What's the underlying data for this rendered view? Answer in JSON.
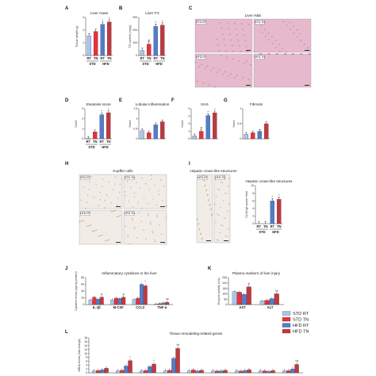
{
  "colors": {
    "std_rt": "#a9c6ec",
    "std_tn": "#e8323a",
    "hfd_rt": "#3f6fc6",
    "hfd_tn": "#b8242c",
    "he_pink": "#e6b9cc",
    "ihc_bg": "#f1ece6"
  },
  "panels": {
    "A": {
      "letter": "A",
      "title": "Liver mass",
      "ylabel": "Tissue weight (g)",
      "xticks": [
        "RT",
        "TN",
        "RT",
        "TN"
      ],
      "groups": [
        "STD",
        "HFD"
      ]
    },
    "B": {
      "letter": "B",
      "title": "Liver TG",
      "ylabel": "TG content (mg/g)",
      "xticks": [
        "RT",
        "TN",
        "RT",
        "TN"
      ],
      "groups": [
        "STD",
        "HFD"
      ]
    },
    "C": {
      "letter": "C",
      "title": "Liver H&E",
      "images": [
        "STD-RT",
        "STD-TN",
        "HFD-RT",
        "HFD-TN"
      ]
    },
    "D": {
      "letter": "D",
      "title": "Steatosis score",
      "ylabel": "Score",
      "xticks": [
        "RT",
        "TN",
        "RT",
        "TN"
      ],
      "groups": [
        "STD",
        "HFD"
      ]
    },
    "E": {
      "letter": "E",
      "title": "Lobular inflammation",
      "ylabel": "Score"
    },
    "F": {
      "letter": "F",
      "title": "NAS",
      "ylabel": "Score"
    },
    "G": {
      "letter": "G",
      "title": "Fibrosis",
      "ylabel": "Score"
    },
    "H": {
      "letter": "H",
      "title": "Kupffer cells",
      "images": [
        "STD-RT",
        "STD-TN",
        "HFD-RT",
        "HFD-TN"
      ]
    },
    "I": {
      "letter": "I",
      "title": "Hepatic crown-like structures",
      "images": [
        "HFD-RT",
        "HFD-TN"
      ],
      "ylabel": "CLS/high power field",
      "xticks": [
        "RT",
        "TN",
        "RT",
        "TN"
      ],
      "groups": [
        "STD",
        "HFD"
      ]
    },
    "J": {
      "letter": "J",
      "title": "Inflammatory cytokines in the liver",
      "ylabel": "Cytokine levels (pg/mg protein)",
      "categories": [
        "IL-1β",
        "M-CSF",
        "CCL2",
        "TNF-α"
      ]
    },
    "K": {
      "letter": "K",
      "title": "Plasma markers of liver injury",
      "ylabel": "Enzyme activity (U/L)",
      "categories": [
        "AST",
        "ALT"
      ]
    },
    "L": {
      "letter": "L",
      "title": "Tissue remodeling-related genes",
      "ylabel": "mRNA levels (fold change)"
    }
  },
  "legend": [
    "STD RT",
    "STD TN",
    "HFD RT",
    "HFD TN"
  ],
  "chart_data": [
    {
      "panel": "A",
      "type": "bar",
      "categories": [
        "STD RT",
        "STD TN",
        "HFD RT",
        "HFD TN"
      ],
      "values": [
        1.55,
        1.9,
        2.45,
        2.65
      ],
      "ylim": [
        0,
        3
      ],
      "yticks": [
        0,
        1,
        2,
        3
      ]
    },
    {
      "panel": "B",
      "type": "bar",
      "categories": [
        "STD RT",
        "STD TN",
        "HFD RT",
        "HFD TN"
      ],
      "values": [
        40,
        90,
        230,
        240
      ],
      "ylim": [
        0,
        300
      ],
      "yticks": [
        0,
        100,
        200,
        300
      ]
    },
    {
      "panel": "D",
      "type": "bar",
      "categories": [
        "STD RT",
        "STD TN",
        "HFD RT",
        "HFD TN"
      ],
      "values": [
        0.05,
        0.7,
        2.4,
        2.6
      ],
      "ylim": [
        0,
        3
      ],
      "yticks": [
        0,
        1,
        2,
        3
      ]
    },
    {
      "panel": "E",
      "type": "bar",
      "categories": [
        "STD RT",
        "STD TN",
        "HFD RT",
        "HFD TN"
      ],
      "values": [
        0.4,
        0.3,
        0.7,
        0.85
      ],
      "ylim": [
        0,
        1.5
      ],
      "yticks": [
        0.0,
        0.5,
        1.0,
        1.5
      ]
    },
    {
      "panel": "F",
      "type": "bar",
      "categories": [
        "STD RT",
        "STD TN",
        "HFD RT",
        "HFD TN"
      ],
      "values": [
        0.4,
        1.0,
        3.1,
        3.45
      ],
      "ylim": [
        0,
        4
      ],
      "yticks": [
        0,
        1,
        2,
        3,
        4
      ]
    },
    {
      "panel": "G",
      "type": "bar",
      "categories": [
        "STD RT",
        "STD TN",
        "HFD RT",
        "HFD TN"
      ],
      "values": [
        0.15,
        0.2,
        0.25,
        0.5
      ],
      "ylim": [
        0,
        1.0
      ],
      "yticks": [
        0.0,
        0.5,
        1.0
      ]
    },
    {
      "panel": "I",
      "type": "bar",
      "categories": [
        "STD RT",
        "STD TN",
        "HFD RT",
        "HFD TN"
      ],
      "values": [
        0,
        0,
        6.0,
        6.4
      ],
      "ylim": [
        0,
        10
      ],
      "yticks": [
        0,
        2,
        4,
        6,
        8,
        10
      ]
    },
    {
      "panel": "J",
      "type": "bar",
      "categories": [
        "IL-1β",
        "M-CSF",
        "CCL2",
        "TNF-α"
      ],
      "ylim": [
        0,
        80
      ],
      "yticks": [
        0,
        20,
        40,
        60,
        80
      ],
      "series": [
        {
          "name": "STD RT",
          "values": [
            14,
            14,
            15,
            2
          ]
        },
        {
          "name": "STD TN",
          "values": [
            22,
            19,
            19,
            3
          ]
        },
        {
          "name": "HFD RT",
          "values": [
            16,
            18,
            60,
            5
          ]
        },
        {
          "name": "HFD TN",
          "values": [
            22,
            22,
            56,
            7
          ]
        }
      ]
    },
    {
      "panel": "K",
      "type": "bar",
      "categories": [
        "AST",
        "ALT"
      ],
      "ylim": [
        0,
        250
      ],
      "yticks": [
        0,
        50,
        100,
        150,
        200,
        250
      ],
      "series": [
        {
          "name": "STD RT",
          "values": [
            120,
            35
          ]
        },
        {
          "name": "STD TN",
          "values": [
            115,
            40
          ]
        },
        {
          "name": "HFD RT",
          "values": [
            95,
            55
          ]
        },
        {
          "name": "HFD TN",
          "values": [
            165,
            100
          ]
        }
      ]
    },
    {
      "panel": "L",
      "type": "bar",
      "ylim": [
        0,
        18
      ],
      "yticks": [
        0,
        2,
        4,
        6,
        8,
        10,
        12,
        14,
        16,
        18
      ],
      "series": [
        {
          "name": "STD RT",
          "values": [
            1,
            1,
            1,
            1,
            1,
            1,
            1,
            1,
            1
          ]
        },
        {
          "name": "STD TN",
          "values": [
            1.2,
            1.3,
            1.2,
            1.3,
            1.5,
            0.9,
            0.9,
            1.0,
            1.1
          ]
        },
        {
          "name": "HFD RT",
          "values": [
            1.6,
            3.5,
            3.2,
            7.5,
            0.9,
            1.0,
            1.2,
            0.7,
            2.0
          ]
        },
        {
          "name": "HFD TN",
          "values": [
            2.4,
            6.3,
            4.5,
            12.6,
            1.3,
            1.3,
            1.6,
            1.2,
            4.3
          ]
        }
      ]
    }
  ]
}
